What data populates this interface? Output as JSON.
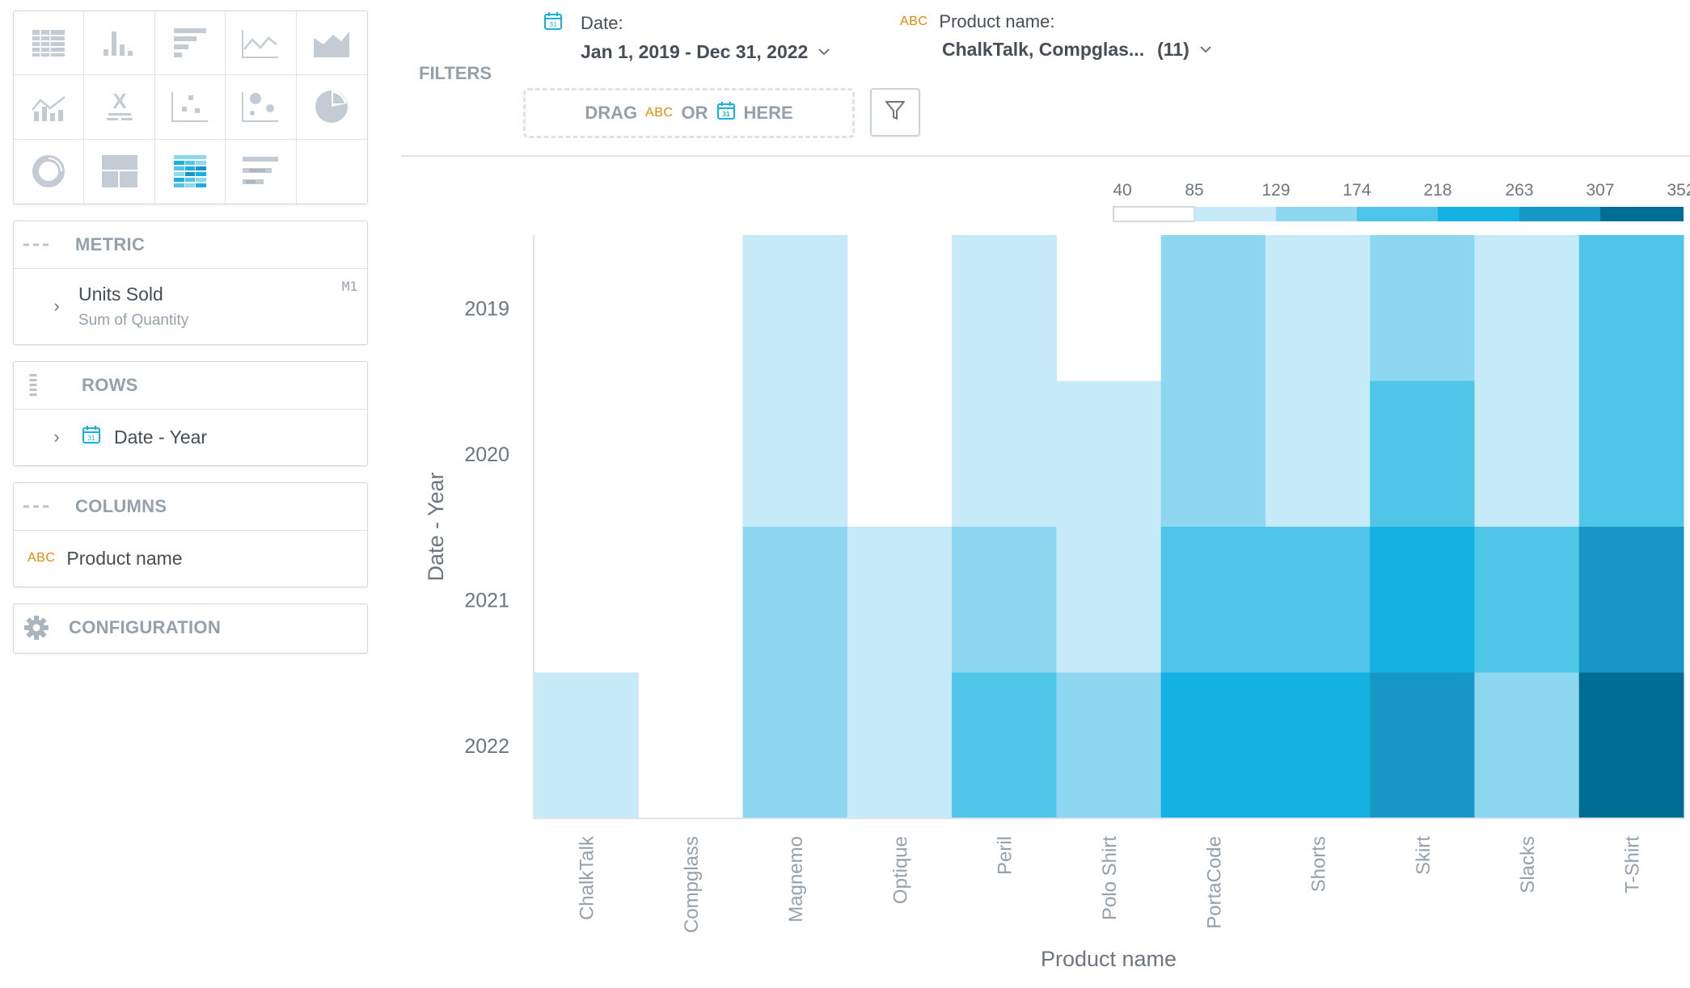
{
  "visualization_types": [
    {
      "name": "table",
      "icon": "table-icon"
    },
    {
      "name": "column",
      "icon": "column-chart-icon"
    },
    {
      "name": "bar",
      "icon": "bar-chart-icon"
    },
    {
      "name": "line",
      "icon": "line-chart-icon"
    },
    {
      "name": "area",
      "icon": "area-chart-icon"
    },
    {
      "name": "combo",
      "icon": "combo-chart-icon"
    },
    {
      "name": "headline",
      "icon": "headline-icon"
    },
    {
      "name": "scatter",
      "icon": "scatter-plot-icon"
    },
    {
      "name": "bubble",
      "icon": "bubble-chart-icon"
    },
    {
      "name": "pie",
      "icon": "pie-chart-icon"
    },
    {
      "name": "donut",
      "icon": "donut-chart-icon"
    },
    {
      "name": "treemap",
      "icon": "treemap-icon"
    },
    {
      "name": "heatmap",
      "icon": "heatmap-icon"
    },
    {
      "name": "bullet",
      "icon": "bullet-chart-icon"
    }
  ],
  "metric": {
    "title": "METRIC",
    "item_label": "Units Sold",
    "item_sub": "Sum of Quantity",
    "item_tag": "M1"
  },
  "rows": {
    "title": "ROWS",
    "item_label": "Date - Year"
  },
  "columns": {
    "title": "COLUMNS",
    "item_type": "ABC",
    "item_label": "Product name"
  },
  "configuration": {
    "title": "CONFIGURATION"
  },
  "filters": {
    "title": "FILTERS",
    "date_label": "Date:",
    "date_value": "Jan 1, 2019 - Dec 31, 2022",
    "product_type": "ABC",
    "product_label": "Product name:",
    "product_value": "ChalkTalk, Compglas...",
    "product_count": "(11)",
    "drag_prefix": "DRAG",
    "drag_abc": "ABC",
    "drag_or": "OR",
    "drag_suffix": "HERE"
  },
  "colors": {
    "accent": "#14b2e2",
    "abc": "#e08a00",
    "muted": "#94a1ad"
  },
  "chart_data": {
    "type": "heatmap",
    "xlabel": "Product name",
    "ylabel": "Date - Year",
    "x": [
      "ChalkTalk",
      "Compglass",
      "Magnemo",
      "Optique",
      "Peril",
      "Polo Shirt",
      "PortaCode",
      "Shorts",
      "Skirt",
      "Slacks",
      "T-Shirt"
    ],
    "y": [
      "2019",
      "2020",
      "2021",
      "2022"
    ],
    "values": [
      [
        null,
        null,
        100,
        null,
        100,
        null,
        160,
        100,
        160,
        100,
        200
      ],
      [
        null,
        null,
        100,
        null,
        100,
        100,
        160,
        100,
        200,
        100,
        200
      ],
      [
        null,
        null,
        160,
        100,
        160,
        100,
        200,
        200,
        240,
        200,
        280
      ],
      [
        100,
        null,
        160,
        100,
        200,
        160,
        240,
        240,
        280,
        160,
        340
      ]
    ],
    "legend_ticks": [
      "40",
      "85",
      "129",
      "174",
      "218",
      "263",
      "307",
      "352"
    ],
    "legend_colors": [
      "#ffffff",
      "#c6eaf7",
      "#8dd7f0",
      "#4fc5e8",
      "#14b2e2",
      "#1697c6",
      "#006d92"
    ]
  }
}
